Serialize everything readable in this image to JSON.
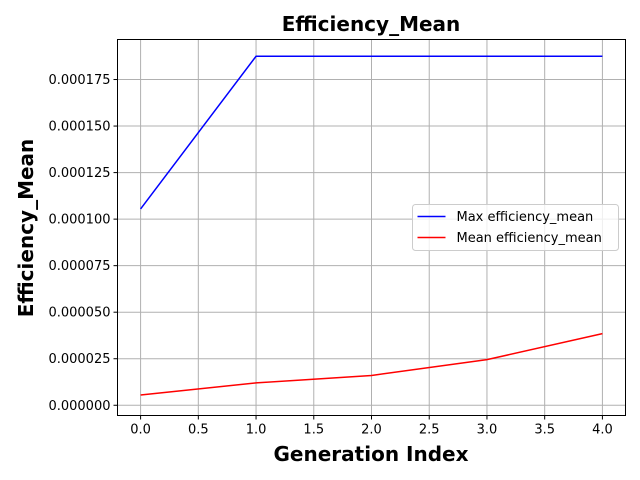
{
  "chart_data": {
    "type": "line",
    "title": "Efficiency_Mean",
    "xlabel": "Generation Index",
    "ylabel": "Efficiency_Mean",
    "xlim": [
      -0.2,
      4.2
    ],
    "ylim": [
      -5.5e-06,
      0.0001965
    ],
    "x_ticks": [
      0.0,
      0.5,
      1.0,
      1.5,
      2.0,
      2.5,
      3.0,
      3.5,
      4.0
    ],
    "x_tick_labels": [
      "0.0",
      "0.5",
      "1.0",
      "1.5",
      "2.0",
      "2.5",
      "3.0",
      "3.5",
      "4.0"
    ],
    "y_ticks": [
      0,
      2.5e-05,
      5e-05,
      7.5e-05,
      0.0001,
      0.000125,
      0.00015,
      0.000175
    ],
    "y_tick_labels": [
      "0.000000",
      "0.000025",
      "0.000050",
      "0.000075",
      "0.000100",
      "0.000125",
      "0.000150",
      "0.000175"
    ],
    "grid": true,
    "legend_position": "center-right",
    "x": [
      0,
      1,
      2,
      3,
      4
    ],
    "series": [
      {
        "name": "Max efficiency_mean",
        "color": "#0000ff",
        "values": [
          0.0001055,
          0.0001875,
          0.0001875,
          0.0001875,
          0.0001875
        ]
      },
      {
        "name": "Mean efficiency_mean",
        "color": "#ff0000",
        "values": [
          5.5e-06,
          1.2e-05,
          1.6e-05,
          2.45e-05,
          3.85e-05
        ]
      }
    ]
  }
}
